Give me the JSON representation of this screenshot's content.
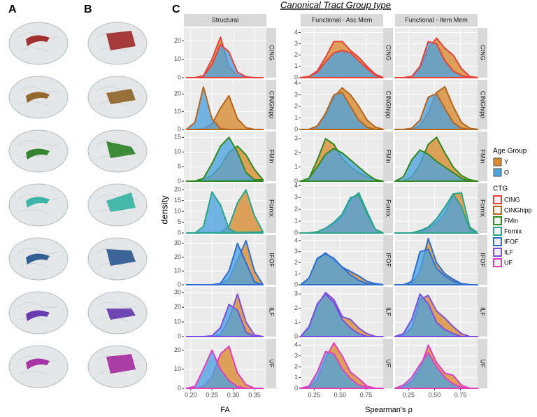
{
  "panel_labels": [
    "A",
    "B",
    "C"
  ],
  "chart_data": {
    "type": "density",
    "title": "Canonical Tract Group type",
    "ylabel": "density",
    "xlabels": [
      "FA",
      "Spearman's ρ"
    ],
    "legend_title": "Age Group",
    "ctg_title": "CTG",
    "columns": [
      {
        "name": "Structural",
        "x": [
          0.19,
          0.21,
          0.23,
          0.25,
          0.27,
          0.29,
          0.31,
          0.33,
          0.35,
          0.37
        ],
        "xlim": [
          0.184,
          0.378
        ],
        "xticks": [
          {
            "value": 0.2,
            "label": "0.20"
          },
          0.25,
          {
            "value": 0.3,
            "label": "0.30"
          },
          0.35
        ]
      },
      {
        "name": "Functional - Asc Mem",
        "x": [
          0.12,
          0.2,
          0.28,
          0.36,
          0.44,
          0.52,
          0.6,
          0.68,
          0.76,
          0.84,
          0.92
        ],
        "xlim": [
          0.12,
          0.915
        ],
        "xticks": [
          0.25,
          {
            "value": 0.5,
            "label": "0.50"
          },
          0.75
        ]
      },
      {
        "name": "Functional - Item Mem",
        "x": [
          0.12,
          0.2,
          0.28,
          0.36,
          0.44,
          0.52,
          0.6,
          0.68,
          0.76,
          0.84,
          0.92
        ],
        "xlim": [
          0.12,
          0.915
        ],
        "xticks": [
          0.25,
          {
            "value": 0.5,
            "label": "0.50"
          },
          0.75
        ]
      }
    ],
    "rows": [
      {
        "name": "CING",
        "color": "#e8403a",
        "struct_ylim": [
          0,
          27
        ],
        "struct_yticks": [
          0,
          10,
          20
        ],
        "func_ylim": [
          0,
          4.4
        ],
        "func_yticks": [
          0,
          1,
          2,
          3,
          4
        ]
      },
      {
        "name": "CINGhipp",
        "color": "#b5651d",
        "struct_ylim": [
          0,
          28
        ],
        "struct_yticks": [
          0,
          10,
          20
        ],
        "func_ylim": [
          0,
          4.3
        ],
        "func_yticks": [
          0,
          1,
          2,
          3,
          4
        ]
      },
      {
        "name": "FMin",
        "color": "#2f8a1f",
        "struct_ylim": [
          0,
          17
        ],
        "struct_yticks": [
          0,
          5,
          10,
          15
        ],
        "func_ylim": [
          0,
          3.5
        ],
        "func_yticks": [
          0,
          1,
          2,
          3
        ]
      },
      {
        "name": "Fornix",
        "color": "#2aa58a",
        "struct_ylim": [
          0,
          23
        ],
        "struct_yticks": [
          0,
          5,
          10,
          15,
          20
        ],
        "func_ylim": [
          0,
          4.2
        ],
        "func_yticks": [
          0,
          1,
          2,
          3,
          4
        ]
      },
      {
        "name": "IFOF",
        "color": "#2f6fd0",
        "struct_ylim": [
          0,
          36
        ],
        "struct_yticks": [
          0,
          10,
          20,
          30
        ],
        "func_ylim": [
          0,
          4.5
        ],
        "func_yticks": [
          0,
          1,
          2,
          3,
          4
        ]
      },
      {
        "name": "ILF",
        "color": "#7b4fe0",
        "struct_ylim": [
          0,
          34
        ],
        "struct_yticks": [
          0,
          10,
          20,
          30
        ],
        "func_ylim": [
          0,
          3.5
        ],
        "func_yticks": [
          0,
          1,
          2,
          3
        ]
      },
      {
        "name": "UF",
        "color": "#e03fc0",
        "struct_ylim": [
          0,
          26
        ],
        "struct_yticks": [
          0,
          10,
          20
        ],
        "func_ylim": [
          0,
          4.6
        ],
        "func_yticks": [
          0,
          1,
          2,
          3,
          4
        ]
      }
    ],
    "series": [
      {
        "name": "Y",
        "color": "#d98a2e",
        "values": [
          [
            [
              0,
              0,
              1,
              10,
              22,
              6,
              1,
              0,
              0,
              0
            ],
            [
              0,
              0.1,
              0.6,
              1.8,
              3.2,
              3.2,
              2.4,
              1.8,
              1,
              0.3,
              0
            ],
            [
              0,
              0,
              0.1,
              0.8,
              2.6,
              3.5,
              2.6,
              2.0,
              0.8,
              0.1,
              0
            ]
          ],
          [
            [
              0,
              0,
              0.5,
              3,
              12,
              19,
              6,
              1,
              0,
              0
            ],
            [
              0,
              0,
              0.3,
              1.2,
              2.8,
              3.6,
              3.0,
              2.0,
              0.8,
              0.2,
              0
            ],
            [
              0,
              0,
              0,
              0.3,
              1.5,
              3.2,
              3.7,
              2.0,
              0.6,
              0.1,
              0
            ]
          ],
          [
            [
              0,
              0,
              0.5,
              2,
              5,
              10,
              12,
              9,
              4,
              0.5
            ],
            [
              0,
              0.2,
              1.5,
              3.0,
              2.6,
              1.6,
              1.0,
              0.6,
              0.3,
              0.1,
              0
            ],
            [
              0,
              0,
              0.3,
              1.2,
              2.6,
              3.1,
              2.0,
              1.0,
              0.4,
              0.1,
              0
            ]
          ],
          [
            [
              0,
              0,
              0,
              0,
              0.5,
              3,
              14,
              20,
              8,
              0.5
            ],
            [
              0,
              0,
              0.1,
              0.4,
              0.8,
              1.4,
              2.8,
              3.4,
              1.8,
              0.3,
              0
            ],
            [
              0,
              0,
              0,
              0.1,
              0.4,
              0.9,
              1.6,
              3.3,
              3.4,
              0.5,
              0
            ]
          ],
          [
            [
              0,
              0,
              0,
              0,
              0.5,
              4,
              18,
              32,
              10,
              0
            ],
            [
              0,
              0.6,
              2.3,
              2.9,
              2.2,
              1.6,
              1.2,
              0.8,
              0.3,
              0.1,
              0
            ],
            [
              0,
              0,
              0.1,
              1.2,
              4.2,
              2.0,
              1.0,
              0.5,
              0.1,
              0,
              0
            ]
          ],
          [
            [
              0,
              0,
              0,
              0,
              1,
              12,
              29,
              10,
              1,
              0
            ],
            [
              0,
              0.6,
              2.2,
              3.1,
              2.6,
              1.4,
              1.2,
              0.6,
              0.2,
              0,
              0
            ],
            [
              0,
              0.1,
              0.6,
              2.6,
              2.9,
              1.8,
              1.3,
              0.7,
              0.2,
              0,
              0
            ]
          ],
          [
            [
              0,
              0,
              1,
              6,
              18,
              22,
              8,
              2,
              0,
              0
            ],
            [
              0,
              0.1,
              0.8,
              2.8,
              4.2,
              3.0,
              1.5,
              0.9,
              0.2,
              0,
              0
            ],
            [
              0,
              0.1,
              0.6,
              1.8,
              4.0,
              2.4,
              1.4,
              1.2,
              0.3,
              0,
              0
            ]
          ]
        ]
      },
      {
        "name": "O",
        "color": "#4da2de",
        "values": [
          [
            [
              0,
              0,
              1,
              7,
              18,
              14,
              3,
              0.5,
              0,
              0
            ],
            [
              0,
              0.1,
              0.5,
              1.4,
              2.2,
              2.4,
              2.2,
              1.5,
              0.8,
              0.2,
              0
            ],
            [
              0,
              0,
              0.1,
              1.0,
              3.2,
              3.0,
              1.5,
              0.6,
              0.2,
              0,
              0
            ]
          ],
          [
            [
              0,
              4,
              24,
              6,
              0.5,
              0,
              0,
              0,
              0,
              0
            ],
            [
              0,
              0,
              0.3,
              1.4,
              3.0,
              3.2,
              2.0,
              0.8,
              0.2,
              0,
              0
            ],
            [
              0,
              0,
              0.1,
              0.8,
              2.8,
              3.1,
              1.8,
              0.6,
              0.1,
              0,
              0
            ]
          ],
          [
            [
              0,
              0,
              1,
              6,
              12,
              15,
              10,
              3,
              0.5,
              0
            ],
            [
              0,
              0.2,
              1.0,
              1.9,
              2.3,
              2.0,
              1.5,
              1.0,
              0.5,
              0.1,
              0
            ],
            [
              0,
              0.3,
              1.5,
              2.2,
              1.9,
              1.4,
              1.0,
              0.6,
              0.2,
              0,
              0
            ]
          ],
          [
            [
              0,
              0,
              3,
              19,
              13,
              2,
              0,
              0,
              0,
              0
            ],
            [
              0,
              0,
              0.1,
              0.4,
              0.9,
              1.6,
              3.0,
              3.2,
              1.6,
              0.3,
              0
            ],
            [
              0,
              0,
              0,
              0.2,
              0.5,
              1.2,
              2.2,
              3.3,
              2.2,
              0.3,
              0
            ]
          ],
          [
            [
              0,
              0,
              0,
              0,
              1,
              10,
              30,
              16,
              2,
              0
            ],
            [
              0,
              0.6,
              2.4,
              2.8,
              2.4,
              1.6,
              0.9,
              0.4,
              0.1,
              0,
              0
            ],
            [
              0,
              0,
              0.3,
              3.0,
              3.2,
              1.5,
              0.8,
              0.3,
              0.1,
              0,
              0
            ]
          ],
          [
            [
              0,
              0,
              0,
              0.5,
              6,
              22,
              18,
              3,
              0,
              0
            ],
            [
              0,
              0.7,
              2.3,
              3.0,
              2.4,
              1.2,
              0.6,
              0.2,
              0,
              0,
              0
            ],
            [
              0,
              0.2,
              1.2,
              3.0,
              2.3,
              1.0,
              0.5,
              0.2,
              0,
              0,
              0
            ]
          ],
          [
            [
              0,
              1,
              10,
              20,
              10,
              4,
              1,
              0,
              0,
              0
            ],
            [
              0,
              0.2,
              1.5,
              3.4,
              3.2,
              1.8,
              0.9,
              0.3,
              0.1,
              0,
              0
            ],
            [
              0,
              0.3,
              1.0,
              2.2,
              3.3,
              2.0,
              1.0,
              0.4,
              0.1,
              0,
              0
            ]
          ]
        ]
      }
    ]
  }
}
